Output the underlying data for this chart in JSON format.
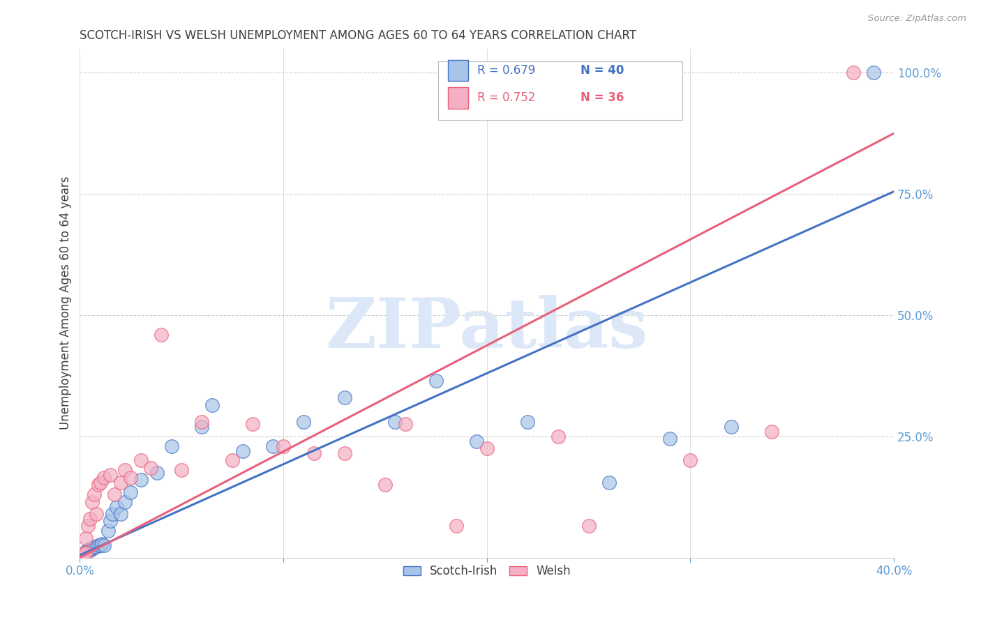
{
  "title": "SCOTCH-IRISH VS WELSH UNEMPLOYMENT AMONG AGES 60 TO 64 YEARS CORRELATION CHART",
  "source": "Source: ZipAtlas.com",
  "ylabel": "Unemployment Among Ages 60 to 64 years",
  "ytick_values": [
    0.25,
    0.5,
    0.75,
    1.0
  ],
  "xmin": 0.0,
  "xmax": 0.4,
  "ymin": 0.0,
  "ymax": 1.05,
  "legend_r1": "R = 0.679",
  "legend_n1": "N = 40",
  "legend_r2": "R = 0.752",
  "legend_n2": "N = 36",
  "legend_label1": "Scotch-Irish",
  "legend_label2": "Welsh",
  "scotch_irish_color": "#a8c4e8",
  "welsh_color": "#f4afc4",
  "scotch_irish_line_color": "#4472c4",
  "welsh_line_color": "#e8607a",
  "title_color": "#404040",
  "axis_label_color": "#5b9bd5",
  "grid_color": "#d0d0d0",
  "watermark_text": "ZIPatlas",
  "watermark_color": "#dce8f8",
  "background_color": "#ffffff",
  "scotch_irish_x": [
    0.001,
    0.002,
    0.002,
    0.003,
    0.003,
    0.004,
    0.005,
    0.005,
    0.006,
    0.006,
    0.007,
    0.008,
    0.009,
    0.01,
    0.011,
    0.012,
    0.014,
    0.015,
    0.016,
    0.018,
    0.02,
    0.022,
    0.025,
    0.03,
    0.038,
    0.045,
    0.06,
    0.065,
    0.08,
    0.095,
    0.11,
    0.13,
    0.155,
    0.175,
    0.195,
    0.22,
    0.26,
    0.29,
    0.32,
    0.39
  ],
  "scotch_irish_y": [
    0.005,
    0.006,
    0.008,
    0.01,
    0.012,
    0.015,
    0.015,
    0.018,
    0.018,
    0.02,
    0.022,
    0.022,
    0.025,
    0.025,
    0.028,
    0.025,
    0.055,
    0.075,
    0.09,
    0.105,
    0.09,
    0.115,
    0.135,
    0.16,
    0.175,
    0.23,
    0.27,
    0.315,
    0.22,
    0.23,
    0.28,
    0.33,
    0.28,
    0.365,
    0.24,
    0.28,
    0.155,
    0.245,
    0.27,
    1.0
  ],
  "welsh_x": [
    0.001,
    0.002,
    0.003,
    0.003,
    0.004,
    0.005,
    0.006,
    0.007,
    0.008,
    0.009,
    0.01,
    0.012,
    0.015,
    0.017,
    0.02,
    0.022,
    0.025,
    0.03,
    0.035,
    0.04,
    0.05,
    0.06,
    0.075,
    0.085,
    0.1,
    0.115,
    0.13,
    0.15,
    0.16,
    0.185,
    0.2,
    0.235,
    0.25,
    0.3,
    0.34,
    0.38
  ],
  "welsh_y": [
    0.005,
    0.008,
    0.01,
    0.04,
    0.065,
    0.08,
    0.115,
    0.13,
    0.09,
    0.15,
    0.155,
    0.165,
    0.17,
    0.13,
    0.155,
    0.18,
    0.165,
    0.2,
    0.185,
    0.46,
    0.18,
    0.28,
    0.2,
    0.275,
    0.23,
    0.215,
    0.215,
    0.15,
    0.275,
    0.065,
    0.225,
    0.25,
    0.065,
    0.2,
    0.26,
    1.0
  ],
  "scotch_irish_line_x": [
    0.0,
    0.4
  ],
  "scotch_irish_line_y": [
    0.005,
    0.755
  ],
  "welsh_line_x": [
    0.0,
    0.4
  ],
  "welsh_line_y": [
    0.0,
    0.875
  ]
}
